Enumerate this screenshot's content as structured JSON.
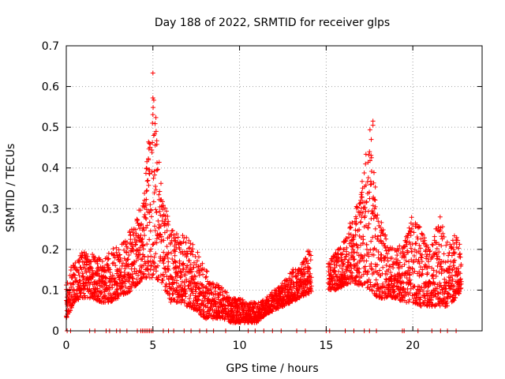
{
  "chart_data": {
    "type": "scatter",
    "title": "Day 188 of 2022, SRMTID for receiver glps",
    "xlabel": "GPS time / hours",
    "ylabel": "SRMTID / TECUs",
    "xlim": [
      0,
      24
    ],
    "ylim": [
      0,
      0.7
    ],
    "xticks": [
      0,
      5,
      10,
      15,
      20
    ],
    "xtick_labels": [
      "0",
      "5",
      "10",
      "15",
      "20"
    ],
    "yticks": [
      0,
      0.1,
      0.2,
      0.3,
      0.4,
      0.5,
      0.6,
      0.7
    ],
    "ytick_labels": [
      "0",
      "0.1",
      "0.2",
      "0.3",
      "0.4",
      "0.5",
      "0.6",
      "0.7"
    ],
    "grid": true,
    "marker": "+",
    "series": [
      {
        "name": "SRMTID",
        "color": "#ff0000",
        "description": "Estimated envelope of the dense scatter of SRMTID values",
        "x": [
          0.0,
          0.5,
          1.0,
          1.5,
          2.0,
          2.5,
          3.0,
          3.5,
          4.0,
          4.5,
          5.0,
          5.5,
          6.0,
          6.5,
          7.0,
          7.5,
          8.0,
          8.5,
          9.0,
          9.5,
          10.0,
          10.5,
          11.0,
          11.5,
          12.0,
          12.5,
          13.0,
          13.5,
          14.0,
          15.0,
          15.5,
          16.0,
          16.5,
          17.0,
          17.5,
          18.0,
          18.5,
          19.0,
          19.5,
          20.0,
          20.5,
          21.0,
          21.5,
          22.0,
          22.5,
          22.8
        ],
        "low": [
          0.03,
          0.07,
          0.08,
          0.08,
          0.07,
          0.07,
          0.08,
          0.09,
          0.11,
          0.13,
          0.13,
          0.12,
          0.07,
          0.07,
          0.06,
          0.05,
          0.03,
          0.03,
          0.03,
          0.02,
          0.02,
          0.02,
          0.02,
          0.04,
          0.05,
          0.06,
          0.07,
          0.08,
          0.09,
          0.1,
          0.1,
          0.11,
          0.12,
          0.11,
          0.1,
          0.08,
          0.08,
          0.08,
          0.07,
          0.07,
          0.06,
          0.06,
          0.06,
          0.06,
          0.08,
          0.1
        ],
        "high": [
          0.14,
          0.17,
          0.2,
          0.19,
          0.18,
          0.2,
          0.21,
          0.23,
          0.28,
          0.33,
          0.63,
          0.35,
          0.25,
          0.24,
          0.23,
          0.2,
          0.16,
          0.12,
          0.11,
          0.08,
          0.08,
          0.07,
          0.07,
          0.08,
          0.1,
          0.12,
          0.15,
          0.16,
          0.2,
          0.18,
          0.19,
          0.22,
          0.28,
          0.34,
          0.51,
          0.3,
          0.22,
          0.2,
          0.22,
          0.29,
          0.26,
          0.2,
          0.3,
          0.22,
          0.24,
          0.2
        ],
        "peaks": [
          {
            "x": 5.0,
            "y": 0.633
          },
          {
            "x": 5.0,
            "y": 0.572
          },
          {
            "x": 5.05,
            "y": 0.48
          },
          {
            "x": 17.7,
            "y": 0.515
          },
          {
            "x": 17.7,
            "y": 0.505
          },
          {
            "x": 17.6,
            "y": 0.47
          }
        ],
        "zero_value_times": [
          0.05,
          0.25,
          1.35,
          1.65,
          2.3,
          2.5,
          2.9,
          3.1,
          3.5,
          4.1,
          4.3,
          4.4,
          4.5,
          4.6,
          4.7,
          4.8,
          4.9,
          5.0,
          5.6,
          5.9,
          6.2,
          6.8,
          7.2,
          7.7,
          8.1,
          8.5,
          9.2,
          10.5,
          10.9,
          11.4,
          11.9,
          12.4,
          13.3,
          13.8,
          15.0,
          15.2,
          16.1,
          16.6,
          17.2,
          17.5,
          17.9,
          19.4,
          19.5,
          20.3,
          21.1,
          21.6,
          22.0,
          22.5
        ]
      }
    ]
  }
}
